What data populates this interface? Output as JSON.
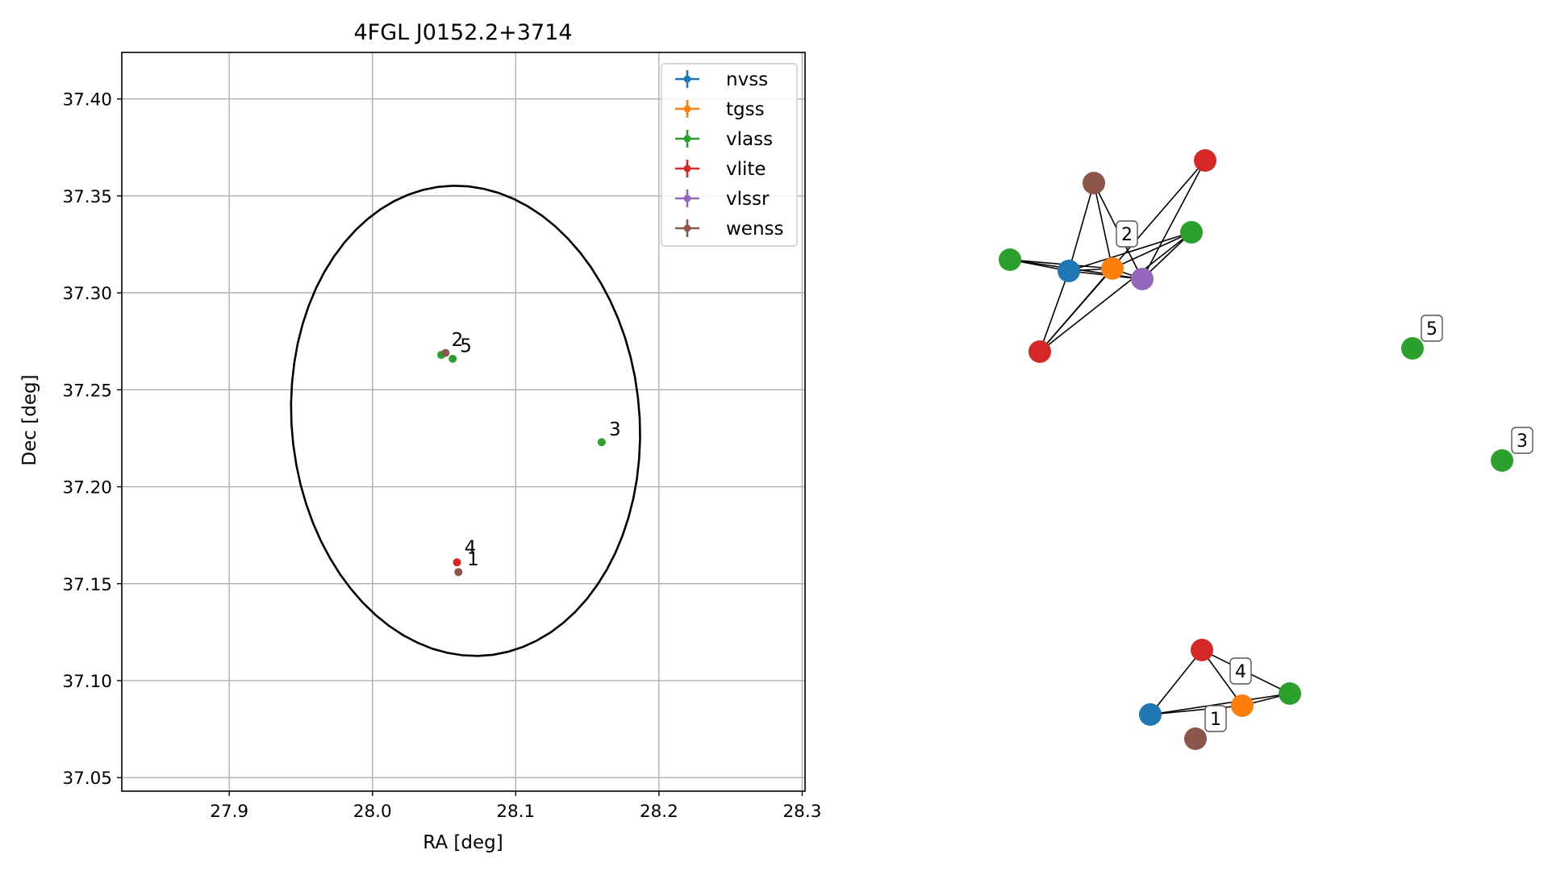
{
  "chart_data": [
    {
      "type": "scatter",
      "title": "4FGL J0152.2+3714",
      "xlabel": "RA [deg]",
      "ylabel": "Dec [deg]",
      "xlim": [
        27.825,
        28.302
      ],
      "ylim": [
        37.043,
        37.424
      ],
      "xticks": [
        "27.9",
        "28.0",
        "28.1",
        "28.2",
        "28.3"
      ],
      "xtick_values": [
        27.9,
        28.0,
        28.1,
        28.2,
        28.3
      ],
      "yticks": [
        "37.05",
        "37.10",
        "37.15",
        "37.20",
        "37.25",
        "37.30",
        "37.35",
        "37.40"
      ],
      "ytick_values": [
        37.05,
        37.1,
        37.15,
        37.2,
        37.25,
        37.3,
        37.35,
        37.4
      ],
      "grid": true,
      "legend_position": "top-right",
      "series": [
        {
          "name": "nvss",
          "color": "#1f77b4",
          "points": []
        },
        {
          "name": "tgss",
          "color": "#ff7f0e",
          "points": []
        },
        {
          "name": "vlass",
          "color": "#2ca02c",
          "points": [
            {
              "ra": 28.048,
              "dec": 37.268
            },
            {
              "ra": 28.056,
              "dec": 37.266
            },
            {
              "ra": 28.16,
              "dec": 37.223
            }
          ]
        },
        {
          "name": "vlite",
          "color": "#d62728",
          "points": [
            {
              "ra": 28.059,
              "dec": 37.161
            }
          ]
        },
        {
          "name": "vlssr",
          "color": "#9467bd",
          "points": []
        },
        {
          "name": "wenss",
          "color": "#8c564b",
          "points": [
            {
              "ra": 28.051,
              "dec": 37.269
            },
            {
              "ra": 28.06,
              "dec": 37.156
            }
          ]
        }
      ],
      "annotations": [
        {
          "text": "2",
          "ra": 28.054,
          "dec": 37.27
        },
        {
          "text": "5",
          "ra": 28.06,
          "dec": 37.267
        },
        {
          "text": "3",
          "ra": 28.164,
          "dec": 37.224
        },
        {
          "text": "4",
          "ra": 28.063,
          "dec": 37.163
        },
        {
          "text": "1",
          "ra": 28.065,
          "dec": 37.157
        }
      ],
      "ellipse": {
        "center_ra": 28.065,
        "center_dec": 37.234,
        "width_deg": 0.25,
        "height_deg": 0.236,
        "angle_deg": -42.6
      }
    },
    {
      "type": "network",
      "nodes": [
        {
          "id": "g1_nvss",
          "color": "#1f77b4"
        },
        {
          "id": "g1_tgss",
          "color": "#ff7f0e"
        },
        {
          "id": "g1_vlssr",
          "color": "#9467bd"
        },
        {
          "id": "g1_wenss",
          "color": "#8c564b"
        },
        {
          "id": "g1_vlite_top",
          "color": "#d62728"
        },
        {
          "id": "g1_vlite_bottom",
          "color": "#d62728"
        },
        {
          "id": "g1_vlass_left",
          "color": "#2ca02c"
        },
        {
          "id": "g1_vlass_right",
          "color": "#2ca02c"
        },
        {
          "id": "n5_vlass",
          "color": "#2ca02c"
        },
        {
          "id": "n3_vlass",
          "color": "#2ca02c"
        },
        {
          "id": "g2_vlite",
          "color": "#d62728"
        },
        {
          "id": "g2_nvss",
          "color": "#1f77b4"
        },
        {
          "id": "g2_tgss",
          "color": "#ff7f0e"
        },
        {
          "id": "g2_vlass",
          "color": "#2ca02c"
        },
        {
          "id": "g2_wenss",
          "color": "#8c564b"
        }
      ],
      "edges": [
        [
          "g1_wenss",
          "g1_nvss"
        ],
        [
          "g1_wenss",
          "g1_tgss"
        ],
        [
          "g1_wenss",
          "g1_vlssr"
        ],
        [
          "g1_vlite_top",
          "g1_vlssr"
        ],
        [
          "g1_vlite_top",
          "g1_vlite_bottom"
        ],
        [
          "g1_vlass_left",
          "g1_nvss"
        ],
        [
          "g1_vlass_left",
          "g1_tgss"
        ],
        [
          "g1_vlass_left",
          "g1_vlssr"
        ],
        [
          "g1_nvss",
          "g1_tgss"
        ],
        [
          "g1_nvss",
          "g1_vlssr"
        ],
        [
          "g1_nvss",
          "g1_vlass_right"
        ],
        [
          "g1_nvss",
          "g1_vlite_bottom"
        ],
        [
          "g1_tgss",
          "g1_vlssr"
        ],
        [
          "g1_tgss",
          "g1_vlass_right"
        ],
        [
          "g1_tgss",
          "g1_vlite_bottom"
        ],
        [
          "g1_vlssr",
          "g1_vlass_right"
        ],
        [
          "g1_vlite_bottom",
          "g1_vlass_right"
        ],
        [
          "g2_nvss",
          "g2_vlite"
        ],
        [
          "g2_nvss",
          "g2_tgss"
        ],
        [
          "g2_nvss",
          "g2_vlass"
        ],
        [
          "g2_vlite",
          "g2_tgss"
        ],
        [
          "g2_vlite",
          "g2_vlass"
        ],
        [
          "g2_tgss",
          "g2_vlass"
        ]
      ],
      "labels": [
        {
          "text": "2",
          "node": "g1_tgss"
        },
        {
          "text": "5",
          "node": "n5_vlass"
        },
        {
          "text": "3",
          "node": "n3_vlass"
        },
        {
          "text": "4",
          "node": "g2_tgss"
        },
        {
          "text": "1",
          "node": "g2_wenss"
        }
      ]
    }
  ]
}
